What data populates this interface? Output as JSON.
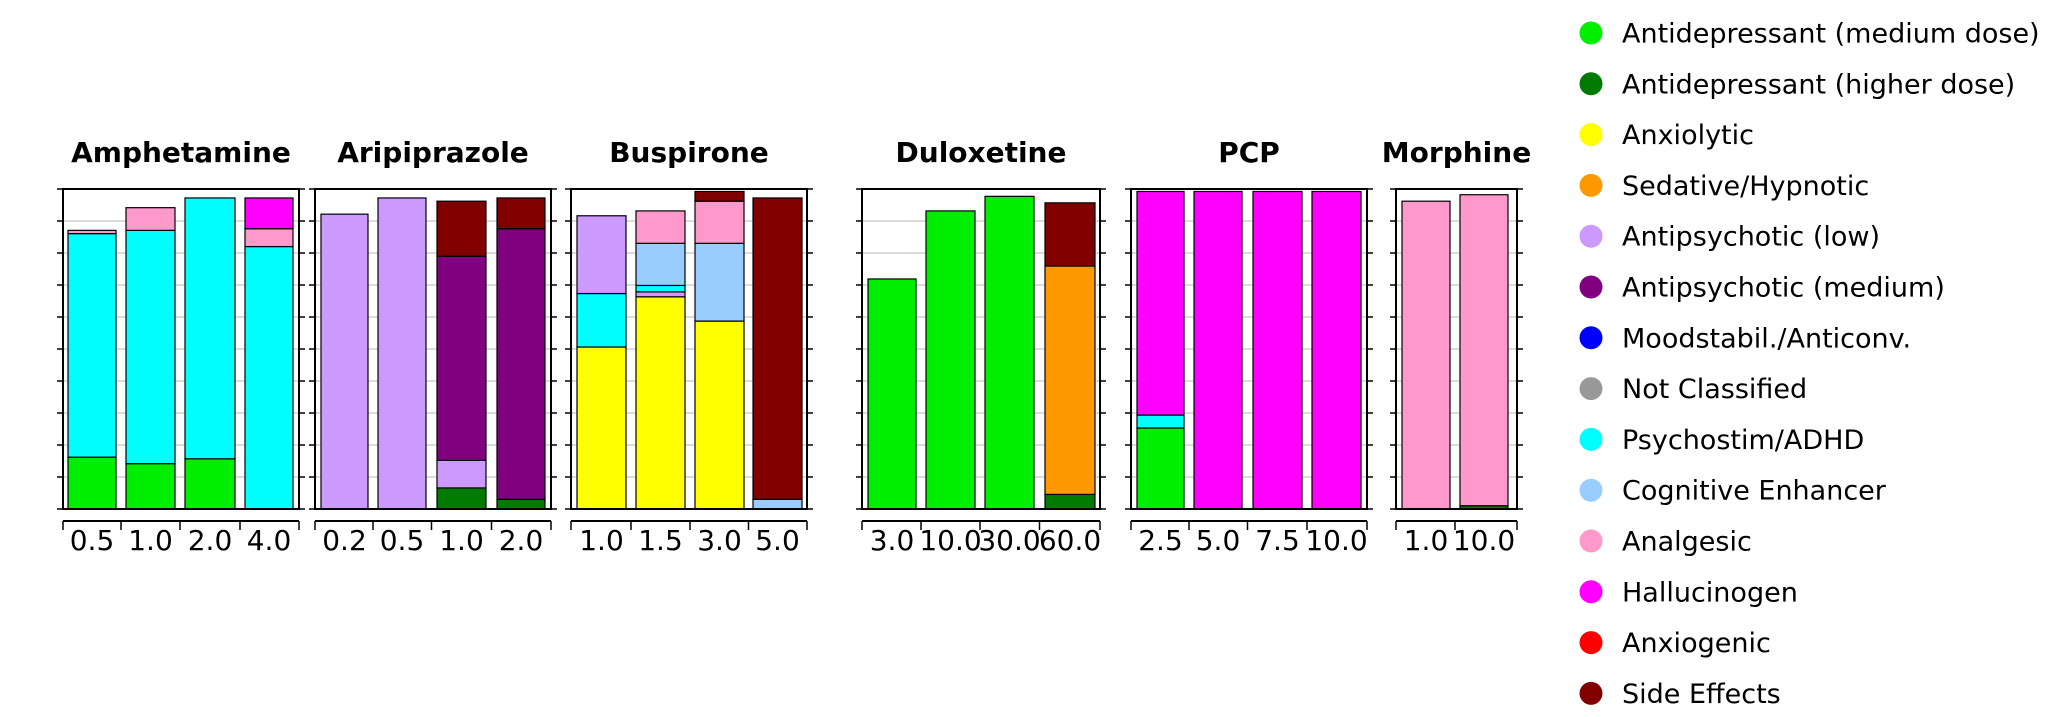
{
  "chart_data": {
    "type": "bar",
    "stacked": true,
    "normalized": true,
    "y_range": [
      0,
      1
    ],
    "grid": true,
    "legend_position": "right",
    "legend": [
      {
        "label": "Antidepressant (medium dose)",
        "color": "#00ee00"
      },
      {
        "label": "Antidepressant (higher dose)",
        "color": "#007a00"
      },
      {
        "label": "Anxiolytic",
        "color": "#ffff00"
      },
      {
        "label": "Sedative/Hypnotic",
        "color": "#ff9900"
      },
      {
        "label": "Antipsychotic (low)",
        "color": "#cc99ff"
      },
      {
        "label": "Antipsychotic (medium)",
        "color": "#800080"
      },
      {
        "label": "Moodstabil./Anticonv.",
        "color": "#0000ff"
      },
      {
        "label": "Not Classified",
        "color": "#999999"
      },
      {
        "label": "Psychostim/ADHD",
        "color": "#00ffff"
      },
      {
        "label": "Cognitive Enhancer",
        "color": "#99ccff"
      },
      {
        "label": "Analgesic",
        "color": "#ff99cc"
      },
      {
        "label": "Hallucinogen",
        "color": "#ff00ff"
      },
      {
        "label": "Anxiogenic",
        "color": "#ff0000"
      },
      {
        "label": "Side Effects",
        "color": "#800000"
      }
    ],
    "panels": [
      {
        "title": "Amphetamine",
        "categories": [
          "0.5",
          "1.0",
          "2.0",
          "4.0"
        ],
        "bars": [
          [
            {
              "c": "Antidepressant (medium dose)",
              "v": 0.16
            },
            {
              "c": "Psychostim/ADHD",
              "v": 0.69
            },
            {
              "c": "Analgesic",
              "v": 0.01
            }
          ],
          [
            {
              "c": "Antidepressant (medium dose)",
              "v": 0.14
            },
            {
              "c": "Psychostim/ADHD",
              "v": 0.72
            },
            {
              "c": "Analgesic",
              "v": 0.07
            }
          ],
          [
            {
              "c": "Antidepressant (medium dose)",
              "v": 0.155
            },
            {
              "c": "Psychostim/ADHD",
              "v": 0.805
            }
          ],
          [
            {
              "c": "Psychostim/ADHD",
              "v": 0.81
            },
            {
              "c": "Analgesic",
              "v": 0.055
            },
            {
              "c": "Hallucinogen",
              "v": 0.095
            }
          ]
        ]
      },
      {
        "title": "Aripiprazole",
        "categories": [
          "0.2",
          "0.5",
          "1.0",
          "2.0"
        ],
        "bars": [
          [
            {
              "c": "Antipsychotic (low)",
              "v": 0.91
            }
          ],
          [
            {
              "c": "Antipsychotic (low)",
              "v": 0.96
            }
          ],
          [
            {
              "c": "Antidepressant (higher dose)",
              "v": 0.065
            },
            {
              "c": "Antipsychotic (low)",
              "v": 0.085
            },
            {
              "c": "Antipsychotic (medium)",
              "v": 0.63
            },
            {
              "c": "Side Effects",
              "v": 0.17
            }
          ],
          [
            {
              "c": "Antidepressant (higher dose)",
              "v": 0.03
            },
            {
              "c": "Antipsychotic (medium)",
              "v": 0.835
            },
            {
              "c": "Side Effects",
              "v": 0.095
            }
          ]
        ]
      },
      {
        "title": "Buspirone",
        "categories": [
          "1.0",
          "1.5",
          "3.0",
          "5.0"
        ],
        "bars": [
          [
            {
              "c": "Anxiolytic",
              "v": 0.5
            },
            {
              "c": "Psychostim/ADHD",
              "v": 0.165
            },
            {
              "c": "Antipsychotic (low)",
              "v": 0.24
            }
          ],
          [
            {
              "c": "Anxiolytic",
              "v": 0.655
            },
            {
              "c": "Antipsychotic (low)",
              "v": 0.015
            },
            {
              "c": "Psychostim/ADHD",
              "v": 0.02
            },
            {
              "c": "Cognitive Enhancer",
              "v": 0.13
            },
            {
              "c": "Analgesic",
              "v": 0.1
            }
          ],
          [
            {
              "c": "Anxiolytic",
              "v": 0.58
            },
            {
              "c": "Cognitive Enhancer",
              "v": 0.24
            },
            {
              "c": "Analgesic",
              "v": 0.13
            },
            {
              "c": "Side Effects",
              "v": 0.03
            }
          ],
          [
            {
              "c": "Cognitive Enhancer",
              "v": 0.03
            },
            {
              "c": "Side Effects",
              "v": 0.93
            }
          ]
        ]
      },
      {
        "title": "Duloxetine",
        "categories": [
          "3.0",
          "10.0",
          "30.0",
          "60.0"
        ],
        "bars": [
          [
            {
              "c": "Antidepressant (medium dose)",
              "v": 0.71
            }
          ],
          [
            {
              "c": "Antidepressant (medium dose)",
              "v": 0.92
            }
          ],
          [
            {
              "c": "Antidepressant (medium dose)",
              "v": 0.965
            }
          ],
          [
            {
              "c": "Antidepressant (higher dose)",
              "v": 0.045
            },
            {
              "c": "Sedative/Hypnotic",
              "v": 0.705
            },
            {
              "c": "Side Effects",
              "v": 0.195
            }
          ]
        ]
      },
      {
        "title": "PCP",
        "categories": [
          "2.5",
          "5.0",
          "7.5",
          "10.0"
        ],
        "bars": [
          [
            {
              "c": "Antidepressant (medium dose)",
              "v": 0.25
            },
            {
              "c": "Psychostim/ADHD",
              "v": 0.04
            },
            {
              "c": "Hallucinogen",
              "v": 0.69
            }
          ],
          [
            {
              "c": "Hallucinogen",
              "v": 0.98
            }
          ],
          [
            {
              "c": "Hallucinogen",
              "v": 0.98
            }
          ],
          [
            {
              "c": "Hallucinogen",
              "v": 0.98
            }
          ]
        ]
      },
      {
        "title": "Morphine",
        "categories": [
          "1.0",
          "10.0"
        ],
        "bars": [
          [
            {
              "c": "Analgesic",
              "v": 0.95
            }
          ],
          [
            {
              "c": "Antidepressant (higher dose)",
              "v": 0.01
            },
            {
              "c": "Analgesic",
              "v": 0.96
            }
          ]
        ]
      }
    ]
  }
}
